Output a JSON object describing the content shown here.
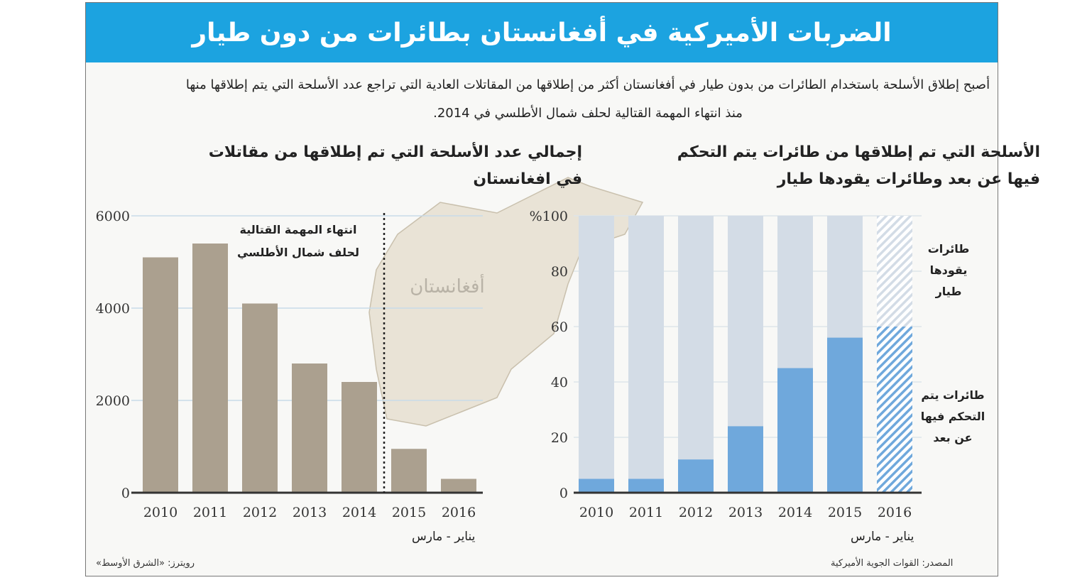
{
  "title": "الضربات الأميركية في أفغانستان بطائرات من دون طيار",
  "intro": "أصبح إطلاق الأسلحة باستخدام الطائرات من بدون طيار في أفغانستان أكثر من إطلاقها من المقاتلات العادية التي تراجع عدد الأسلحة التي يتم إطلاقها منها منذ انتهاء المهمة القتالية لحلف شمال الأطلسي في 2014.",
  "map_label": "أفغانستان",
  "colors": {
    "header": "#1ca3e0",
    "fighter_bar": "#aba08f",
    "drone": "#6fa8dc",
    "manned": "#d3dce6"
  },
  "chart_data": [
    {
      "type": "bar",
      "title": "إجمالي عدد الأسلحة التي تم إطلاقها من مقاتلات في افغانستان",
      "categories": [
        "2010",
        "2011",
        "2012",
        "2013",
        "2014",
        "2015",
        "2016"
      ],
      "values": [
        5100,
        5400,
        4100,
        2800,
        2400,
        950,
        300
      ],
      "ylim": [
        0,
        6000
      ],
      "yticks": [
        "0",
        "2000",
        "4000",
        "6000"
      ],
      "grid": true,
      "annotation": "انتهاء المهمة القتالية لحلف شمال الأطلسي",
      "annotation_line_between": [
        "2014",
        "2015"
      ],
      "last_category_note": "يناير - مارس"
    },
    {
      "type": "bar",
      "stacked": true,
      "title": "الأسلحة التي تم إطلاقها من طائرات يتم التحكم فيها عن بعد وطائرات يقودها طيار",
      "categories": [
        "2010",
        "2011",
        "2012",
        "2013",
        "2014",
        "2015",
        "2016"
      ],
      "ylim": [
        0,
        100
      ],
      "yticks": [
        "0",
        "20",
        "40",
        "60",
        "80",
        "%100"
      ],
      "series": [
        {
          "name": "طائرات يتم التحكم فيها عن بعد",
          "values": [
            5,
            5,
            12,
            24,
            45,
            56,
            60
          ]
        },
        {
          "name": "طائرات يقودها طيار",
          "values": [
            95,
            95,
            88,
            76,
            55,
            44,
            40
          ]
        }
      ],
      "hatched_category": "2016",
      "last_category_note": "يناير - مارس"
    }
  ],
  "source_left": "المصدر: القوات الجوية الأميركية",
  "source_right": "رويترز: «الشرق الأوسط»"
}
